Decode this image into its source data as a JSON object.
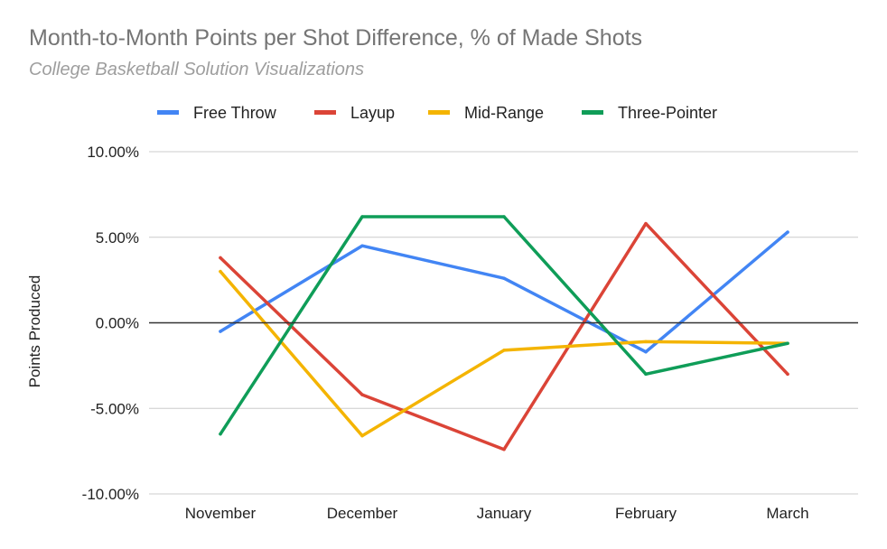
{
  "chart_data": {
    "type": "line",
    "title": "Month-to-Month Points per Shot Difference, % of Made Shots",
    "subtitle": "College Basketball Solution Visualizations",
    "xlabel": "",
    "ylabel": "Points Produced",
    "categories": [
      "November",
      "December",
      "January",
      "February",
      "March"
    ],
    "ylim": [
      -0.1,
      0.1
    ],
    "yticks": [
      {
        "value": 0.1,
        "label": "10.00%"
      },
      {
        "value": 0.05,
        "label": "5.00%"
      },
      {
        "value": 0.0,
        "label": "0.00%"
      },
      {
        "value": -0.05,
        "label": "-5.00%"
      },
      {
        "value": -0.1,
        "label": "-10.00%"
      }
    ],
    "grid": true,
    "legend_position": "top",
    "series": [
      {
        "name": "Free Throw",
        "color": "#4285f4",
        "values": [
          -0.005,
          0.045,
          0.026,
          -0.017,
          0.053
        ]
      },
      {
        "name": "Layup",
        "color": "#db4437",
        "values": [
          0.038,
          -0.042,
          -0.074,
          0.058,
          -0.03
        ]
      },
      {
        "name": "Mid-Range",
        "color": "#f4b400",
        "values": [
          0.03,
          -0.066,
          -0.016,
          -0.011,
          -0.012
        ]
      },
      {
        "name": "Three-Pointer",
        "color": "#0f9d58",
        "values": [
          -0.065,
          0.062,
          0.062,
          -0.03,
          -0.012
        ]
      }
    ]
  }
}
